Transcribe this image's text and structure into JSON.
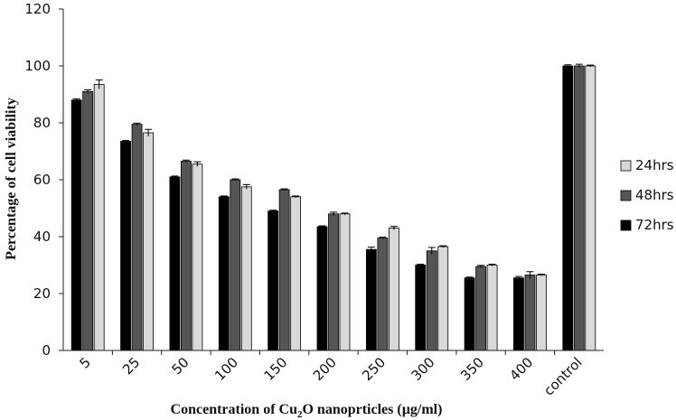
{
  "chart_data": {
    "type": "bar",
    "title": "",
    "xlabel_main": "Concentration of Cu",
    "xlabel_sub": "2",
    "xlabel_rest": "O nanoprticles (µg/ml)",
    "ylabel": "Percentage of cell viability",
    "ylim": [
      0,
      120
    ],
    "yticks": [
      0,
      20,
      40,
      60,
      80,
      100,
      120
    ],
    "grid": false,
    "legend_position": "right",
    "categories": [
      "5",
      "25",
      "50",
      "100",
      "150",
      "200",
      "250",
      "300",
      "350",
      "400",
      "control"
    ],
    "series": [
      {
        "name": "72hrs",
        "color": "#000000",
        "values": [
          88,
          73.5,
          61,
          54,
          49,
          43.5,
          35.5,
          30,
          25.5,
          25.5,
          100
        ],
        "errors": [
          0.4,
          0.3,
          0.3,
          0.3,
          0.3,
          0.3,
          0.8,
          0.3,
          0.3,
          0.5,
          0.4
        ]
      },
      {
        "name": "48hrs",
        "color": "#555555",
        "values": [
          91,
          79.5,
          66.5,
          60,
          56.5,
          48,
          39.5,
          35,
          29.5,
          26.5,
          100
        ],
        "errors": [
          0.6,
          0.4,
          0.4,
          0.3,
          0.3,
          0.6,
          0.3,
          1.2,
          0.4,
          1.2,
          0.6
        ]
      },
      {
        "name": "24hrs",
        "color": "#d9d9d9",
        "values": [
          93.5,
          76.5,
          65.5,
          57.5,
          54,
          48,
          43,
          36.5,
          30,
          26.5,
          100
        ],
        "errors": [
          1.6,
          1.2,
          0.8,
          0.8,
          0.3,
          0.3,
          0.6,
          0.3,
          0.3,
          0.3,
          0.3
        ]
      }
    ],
    "legend_order": [
      "24hrs",
      "48hrs",
      "72hrs"
    ]
  }
}
